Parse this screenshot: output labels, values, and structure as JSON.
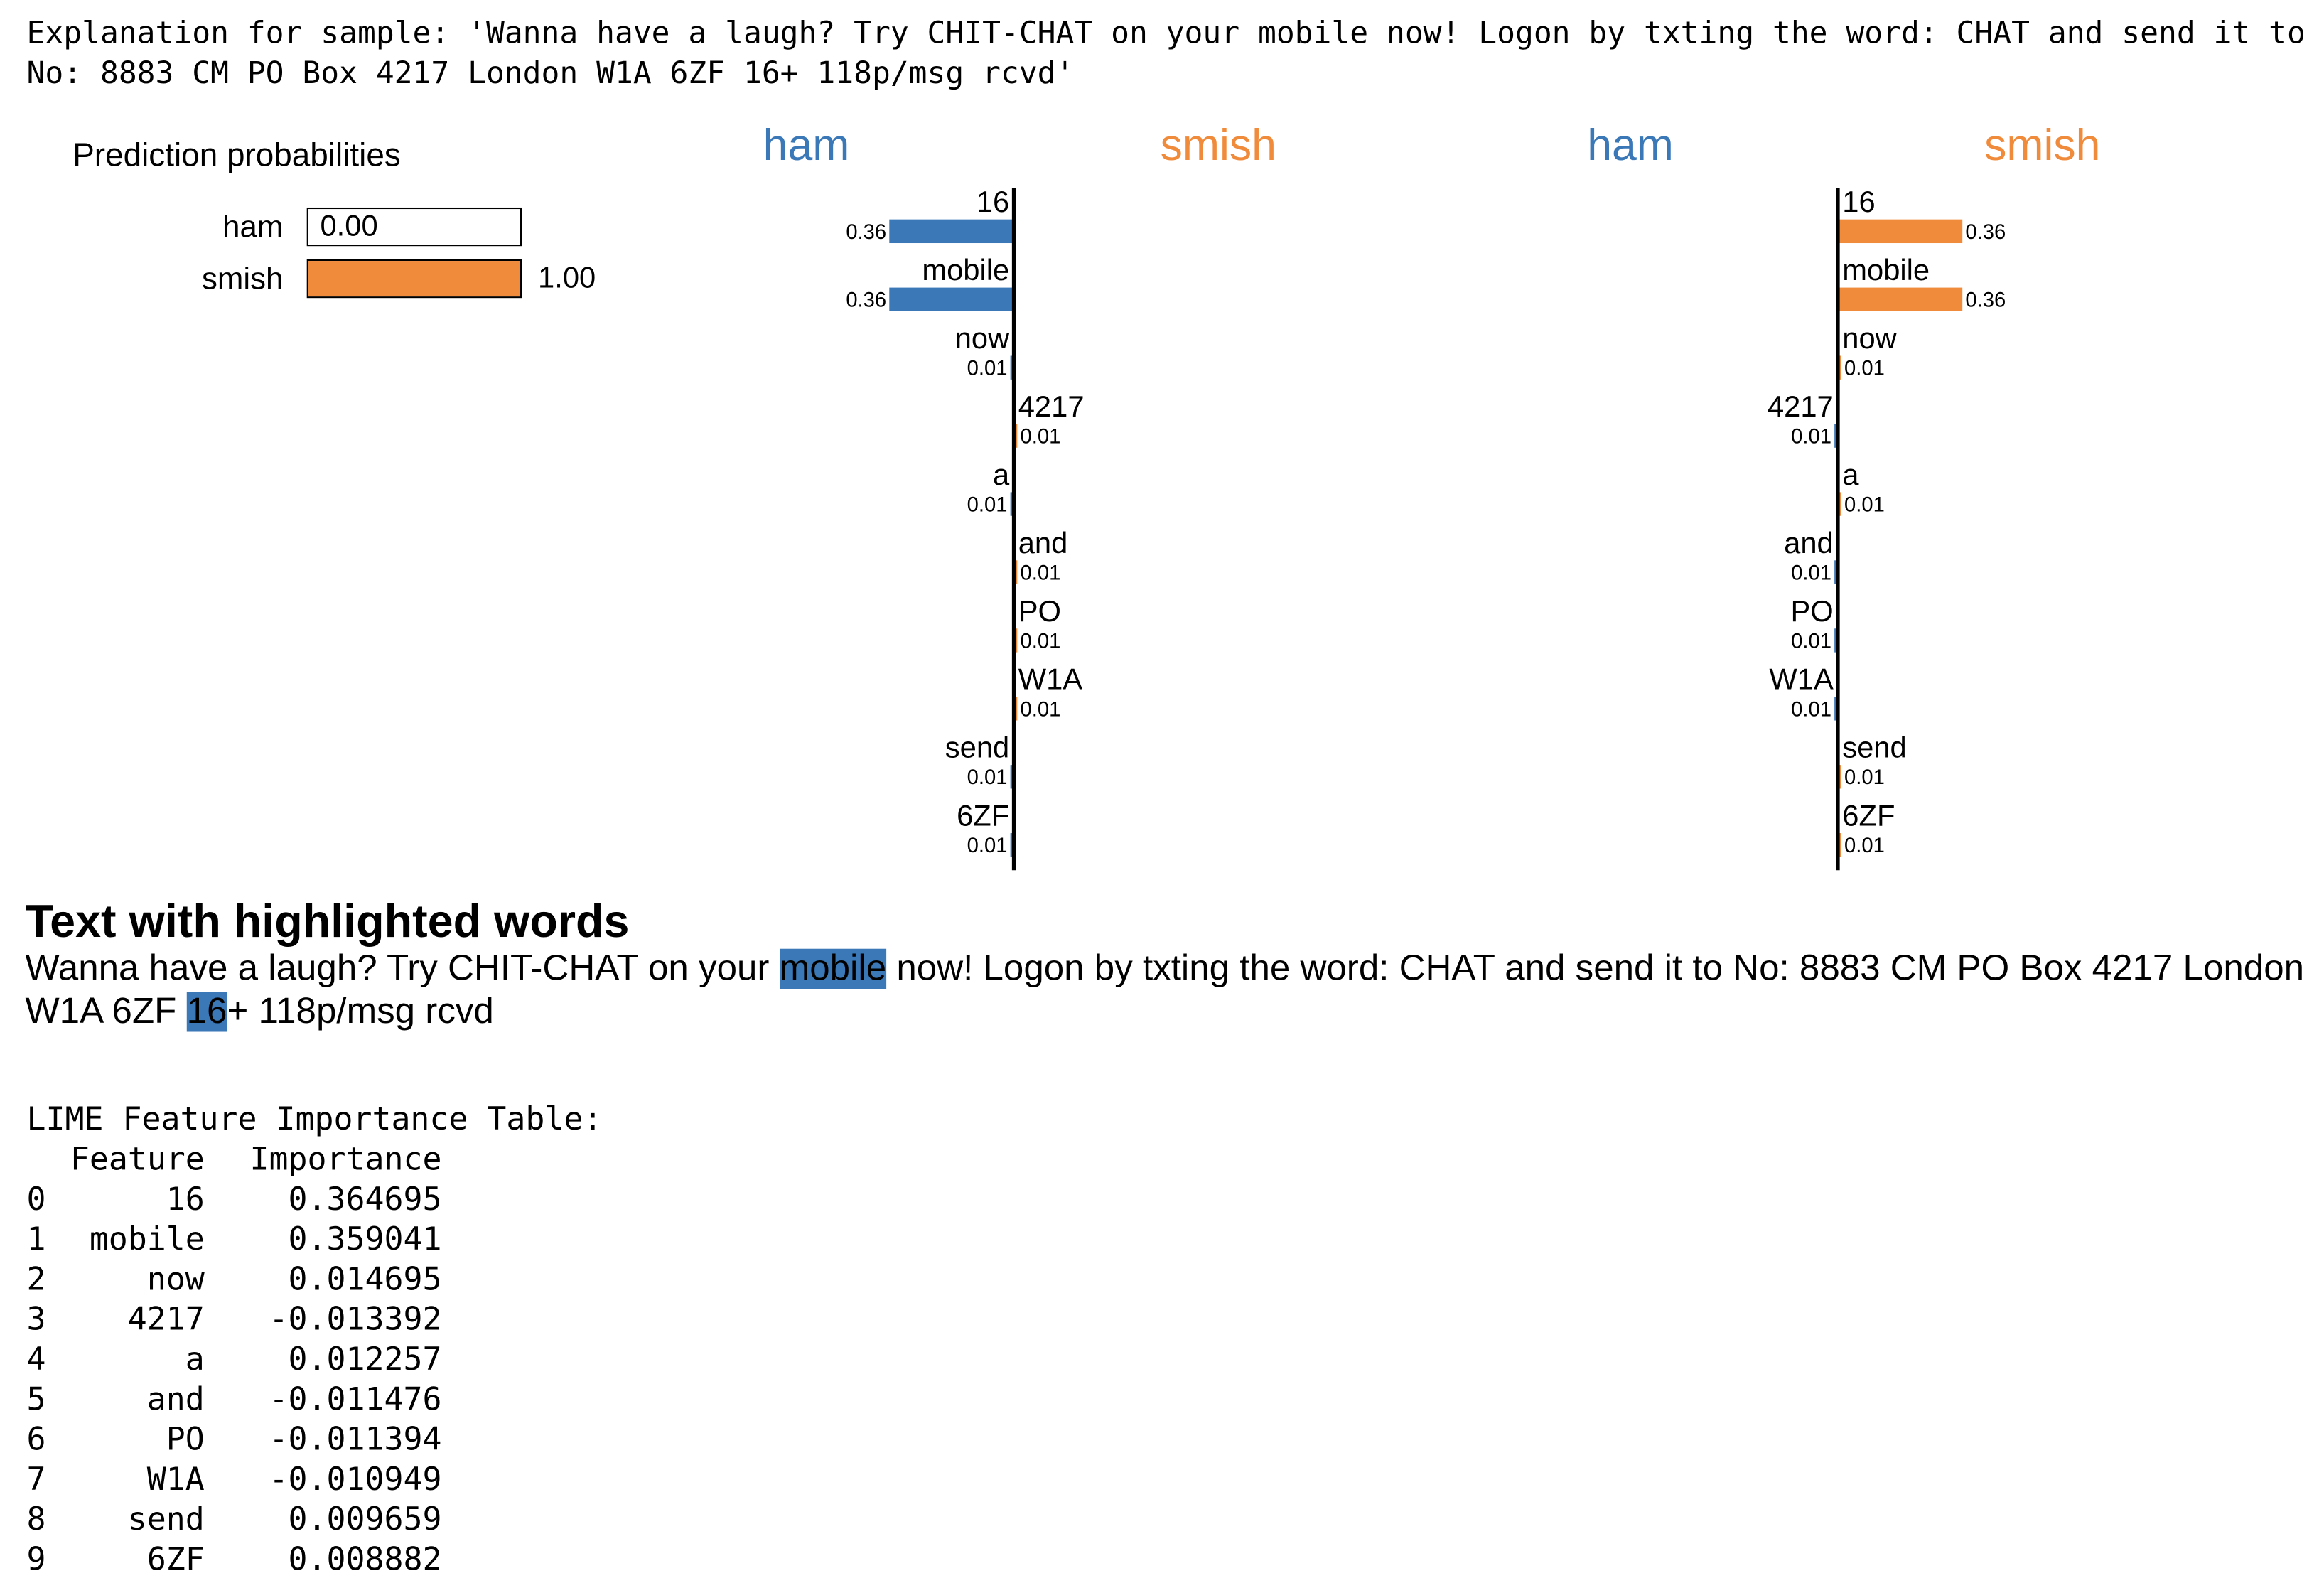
{
  "explanation_text": "Explanation for sample: 'Wanna have a laugh? Try CHIT-CHAT on your mobile now! Logon by txting the word: CHAT and send it to No: 8883 CM PO Box 4217 London W1A 6ZF 16+ 118p/msg rcvd'",
  "prediction": {
    "title": "Prediction probabilities",
    "rows": [
      {
        "label": "ham",
        "value": 0.0,
        "value_text": "0.00"
      },
      {
        "label": "smish",
        "value": 1.0,
        "value_text": "1.00"
      }
    ]
  },
  "colors": {
    "ham": "#3a78b8",
    "smish": "#f08b3b",
    "highlight": "#3a78b8"
  },
  "chart_data": [
    {
      "type": "bar",
      "orientation": "horizontal",
      "left_class": "ham",
      "right_class": "smish",
      "features": [
        "16",
        "mobile",
        "now",
        "4217",
        "a",
        "and",
        "PO",
        "W1A",
        "send",
        "6ZF"
      ],
      "values": [
        -0.36,
        -0.36,
        -0.01,
        0.01,
        -0.01,
        0.01,
        0.01,
        0.01,
        -0.01,
        -0.01
      ],
      "labels": [
        "0.36",
        "0.36",
        "0.01",
        "0.01",
        "0.01",
        "0.01",
        "0.01",
        "0.01",
        "0.01",
        "0.01"
      ]
    },
    {
      "type": "bar",
      "orientation": "horizontal",
      "left_class": "ham",
      "right_class": "smish",
      "features": [
        "16",
        "mobile",
        "now",
        "4217",
        "a",
        "and",
        "PO",
        "W1A",
        "send",
        "6ZF"
      ],
      "values": [
        0.36,
        0.36,
        0.01,
        -0.01,
        0.01,
        -0.01,
        -0.01,
        -0.01,
        0.01,
        0.01
      ],
      "labels": [
        "0.36",
        "0.36",
        "0.01",
        "0.01",
        "0.01",
        "0.01",
        "0.01",
        "0.01",
        "0.01",
        "0.01"
      ]
    }
  ],
  "highlighted": {
    "title": "Text with highlighted words",
    "words": [
      {
        "t": "Wanna have a laugh? Try CHIT-CHAT on your ",
        "hl": false
      },
      {
        "t": "mobile",
        "hl": true
      },
      {
        "t": " now! Logon by txting the word: CHAT and send it to No: 8883 CM PO Box 4217 London W1A 6ZF ",
        "hl": false
      },
      {
        "t": "16",
        "hl": true
      },
      {
        "t": "+ 118p/msg rcvd",
        "hl": false
      }
    ]
  },
  "table": {
    "title": "LIME Feature Importance Table:",
    "columns": [
      "Feature",
      "Importance"
    ],
    "rows": [
      {
        "idx": "0",
        "feature": "16",
        "importance": "0.364695"
      },
      {
        "idx": "1",
        "feature": "mobile",
        "importance": "0.359041"
      },
      {
        "idx": "2",
        "feature": "now",
        "importance": "0.014695"
      },
      {
        "idx": "3",
        "feature": "4217",
        "importance": "-0.013392"
      },
      {
        "idx": "4",
        "feature": "a",
        "importance": "0.012257"
      },
      {
        "idx": "5",
        "feature": "and",
        "importance": "-0.011476"
      },
      {
        "idx": "6",
        "feature": "PO",
        "importance": "-0.011394"
      },
      {
        "idx": "7",
        "feature": "W1A",
        "importance": "-0.010949"
      },
      {
        "idx": "8",
        "feature": "send",
        "importance": "0.009659"
      },
      {
        "idx": "9",
        "feature": "6ZF",
        "importance": "0.008882"
      }
    ]
  }
}
